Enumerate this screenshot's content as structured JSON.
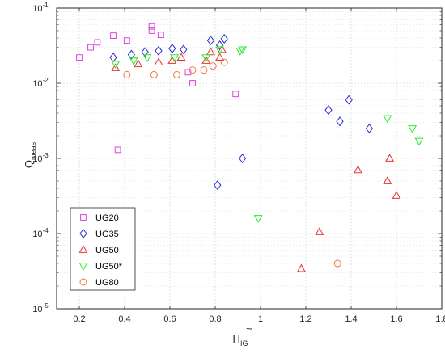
{
  "chart_data": {
    "type": "scatter",
    "xlabel": "H",
    "xlabel_sub": "IG",
    "xlabel_sup": "~",
    "ylabel": "Q",
    "ylabel_sub": "meas",
    "xlim": [
      0.1,
      1.8
    ],
    "ylim_exponents": [
      -5,
      -1
    ],
    "yscale": "log",
    "grid": true,
    "legend_position": "bottom-left",
    "x_ticks": [
      "0.2",
      "0.4",
      "0.6",
      "0.8",
      "1",
      "1.2",
      "1.4",
      "1.6",
      "1.8"
    ],
    "x_tick_values": [
      0.2,
      0.4,
      0.6,
      0.8,
      1.0,
      1.2,
      1.4,
      1.6,
      1.8
    ],
    "y_ticks": [
      {
        "base": "10",
        "exp": "-5",
        "value": -5
      },
      {
        "base": "10",
        "exp": "-4",
        "value": -4
      },
      {
        "base": "10",
        "exp": "-3",
        "value": -3
      },
      {
        "base": "10",
        "exp": "-2",
        "value": -2
      },
      {
        "base": "10",
        "exp": "-1",
        "value": -1
      }
    ],
    "series": [
      {
        "name": "UG20",
        "marker": "square",
        "color": "#e040e0",
        "points": [
          [
            0.2,
            0.022
          ],
          [
            0.25,
            0.03
          ],
          [
            0.28,
            0.035
          ],
          [
            0.35,
            0.043
          ],
          [
            0.37,
            0.0013
          ],
          [
            0.41,
            0.037
          ],
          [
            0.52,
            0.057
          ],
          [
            0.52,
            0.05
          ],
          [
            0.56,
            0.044
          ],
          [
            0.68,
            0.014
          ],
          [
            0.7,
            0.01
          ],
          [
            0.89,
            0.0072
          ]
        ]
      },
      {
        "name": "UG35",
        "marker": "diamond",
        "color": "#2a2ad6",
        "points": [
          [
            0.35,
            0.022
          ],
          [
            0.43,
            0.024
          ],
          [
            0.49,
            0.026
          ],
          [
            0.55,
            0.027
          ],
          [
            0.61,
            0.029
          ],
          [
            0.66,
            0.028
          ],
          [
            0.78,
            0.037
          ],
          [
            0.81,
            0.00044
          ],
          [
            0.82,
            0.032
          ],
          [
            0.84,
            0.039
          ],
          [
            0.92,
            0.001
          ],
          [
            1.3,
            0.0044
          ],
          [
            1.35,
            0.0031
          ],
          [
            1.39,
            0.006
          ],
          [
            1.48,
            0.0025
          ]
        ]
      },
      {
        "name": "UG50",
        "marker": "triangle-up",
        "color": "#e83030",
        "points": [
          [
            0.36,
            0.016
          ],
          [
            0.46,
            0.018
          ],
          [
            0.55,
            0.019
          ],
          [
            0.61,
            0.02
          ],
          [
            0.65,
            0.022
          ],
          [
            0.76,
            0.02
          ],
          [
            0.78,
            0.026
          ],
          [
            0.82,
            0.022
          ],
          [
            0.83,
            0.028
          ],
          [
            1.18,
            3.4e-05
          ],
          [
            1.26,
            0.000105
          ],
          [
            1.43,
            0.0007
          ],
          [
            1.56,
            0.0005
          ],
          [
            1.57,
            0.001
          ],
          [
            1.6,
            0.00032
          ]
        ]
      },
      {
        "name": "UG50*",
        "marker": "triangle-down",
        "color": "#22ee22",
        "points": [
          [
            0.36,
            0.018
          ],
          [
            0.44,
            0.02
          ],
          [
            0.5,
            0.022
          ],
          [
            0.62,
            0.022
          ],
          [
            0.76,
            0.022
          ],
          [
            0.82,
            0.028
          ],
          [
            0.91,
            0.027
          ],
          [
            0.92,
            0.028
          ],
          [
            0.99,
            0.00016
          ],
          [
            1.56,
            0.0034
          ],
          [
            1.67,
            0.0025
          ],
          [
            1.7,
            0.0017
          ]
        ]
      },
      {
        "name": "UG80",
        "marker": "circle",
        "color": "#f07840",
        "points": [
          [
            0.41,
            0.013
          ],
          [
            0.53,
            0.013
          ],
          [
            0.63,
            0.013
          ],
          [
            0.7,
            0.015
          ],
          [
            0.75,
            0.015
          ],
          [
            0.79,
            0.017
          ],
          [
            0.84,
            0.019
          ],
          [
            1.34,
            4e-05
          ]
        ]
      }
    ]
  }
}
